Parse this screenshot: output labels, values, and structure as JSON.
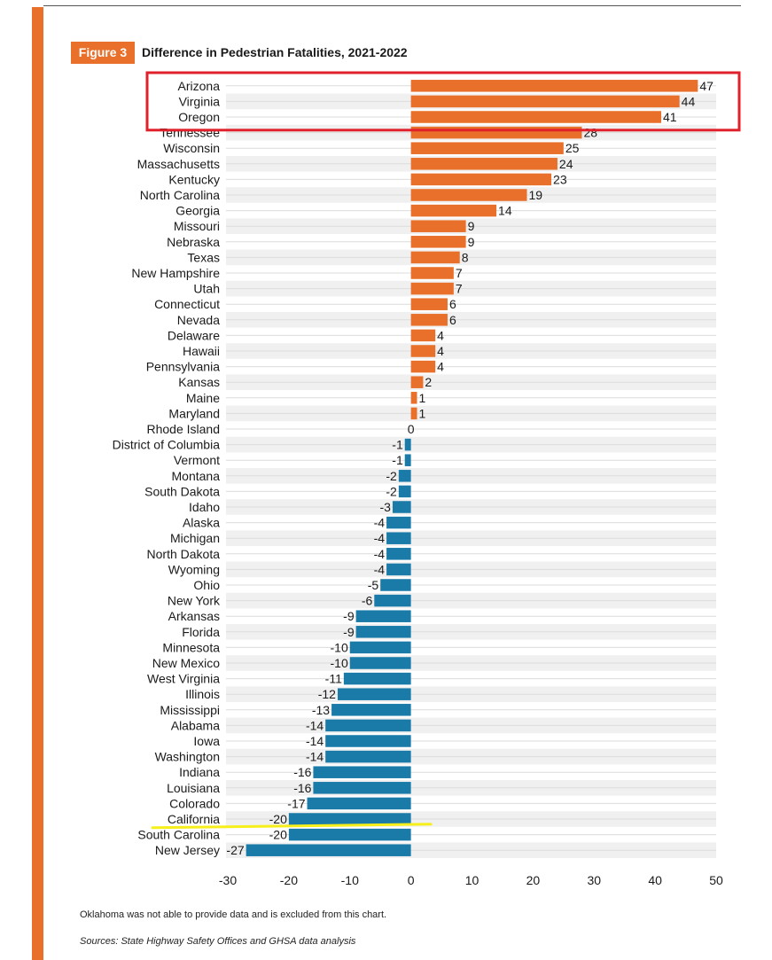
{
  "figure": {
    "label": "Figure 3",
    "title": "Difference in Pedestrian Fatalities, 2021-2022"
  },
  "footnote": "Oklahoma was not able to provide data and is excluded from this chart.",
  "sources": "Sources: State Highway Safety Offices and GHSA data analysis",
  "colors": {
    "positive": "#e8702a",
    "negative": "#1a7aa8",
    "accent": "#e8702a",
    "highlight_box": "#e0202a",
    "highlight_line": "#f7ef1a",
    "stripe": "#f0f0f0"
  },
  "chart_data": {
    "type": "bar",
    "orientation": "horizontal",
    "categories": [
      "Arizona",
      "Virginia",
      "Oregon",
      "Tennessee",
      "Wisconsin",
      "Massachusetts",
      "Kentucky",
      "North Carolina",
      "Georgia",
      "Missouri",
      "Nebraska",
      "Texas",
      "New Hampshire",
      "Utah",
      "Connecticut",
      "Nevada",
      "Delaware",
      "Hawaii",
      "Pennsylvania",
      "Kansas",
      "Maine",
      "Maryland",
      "Rhode Island",
      "District of Columbia",
      "Vermont",
      "Montana",
      "South Dakota",
      "Idaho",
      "Alaska",
      "Michigan",
      "North Dakota",
      "Wyoming",
      "Ohio",
      "New York",
      "Arkansas",
      "Florida",
      "Minnesota",
      "New Mexico",
      "West Virginia",
      "Illinois",
      "Mississippi",
      "Alabama",
      "Iowa",
      "Washington",
      "Indiana",
      "Louisiana",
      "Colorado",
      "California",
      "South Carolina",
      "New Jersey"
    ],
    "values": [
      47,
      44,
      41,
      28,
      25,
      24,
      23,
      19,
      14,
      9,
      9,
      8,
      7,
      7,
      6,
      6,
      4,
      4,
      4,
      2,
      1,
      1,
      0,
      -1,
      -1,
      -2,
      -2,
      -3,
      -4,
      -4,
      -4,
      -4,
      -5,
      -6,
      -9,
      -9,
      -10,
      -10,
      -11,
      -12,
      -13,
      -14,
      -14,
      -14,
      -16,
      -16,
      -17,
      -20,
      -20,
      -27
    ],
    "xlim": [
      -30,
      50
    ],
    "xticks": [
      -30,
      -20,
      -10,
      0,
      10,
      20,
      30,
      40,
      50
    ],
    "grid": true,
    "highlighted_categories": [
      "Arizona",
      "Virginia",
      "Oregon"
    ],
    "underlined_category": "California"
  }
}
